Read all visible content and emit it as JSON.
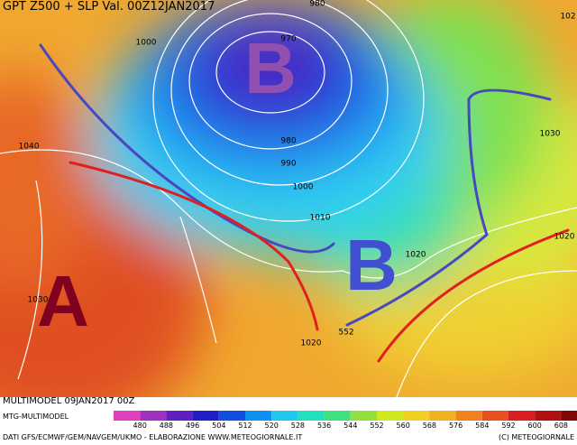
{
  "header": {
    "title": "GPT Z500 + SLP Val. 00Z12JAN2017"
  },
  "map": {
    "isobar_labels": [
      "980",
      "970",
      "1000",
      "980",
      "990",
      "1000",
      "1010",
      "1020",
      "1040",
      "1030",
      "1030",
      "1020",
      "1020",
      "552",
      "102"
    ],
    "systems": [
      "B",
      "B",
      "A"
    ]
  },
  "legend": {
    "ticks": [
      480,
      488,
      496,
      504,
      512,
      520,
      528,
      536,
      544,
      552,
      560,
      568,
      576,
      584,
      592,
      600,
      608
    ],
    "colors": [
      "#e040c0",
      "#a030c0",
      "#6020c0",
      "#2020c8",
      "#1050e0",
      "#1090f0",
      "#20c8f0",
      "#20e0c0",
      "#40e080",
      "#90e040",
      "#d0e820",
      "#f0d020",
      "#f0b020",
      "#f08020",
      "#e85020",
      "#d82020",
      "#b01010",
      "#800808"
    ]
  },
  "footer": {
    "run": "MULTIMODEL 09JAN2017 00Z",
    "model": "MTG-MULTIMODEL",
    "credits": "DATI GFS/ECMWF/GEM/NAVGEM/UKMO - ELABORAZIONE WWW.METEOGIORNALE.IT",
    "copyright": "(C) METEOGIORNALE"
  }
}
